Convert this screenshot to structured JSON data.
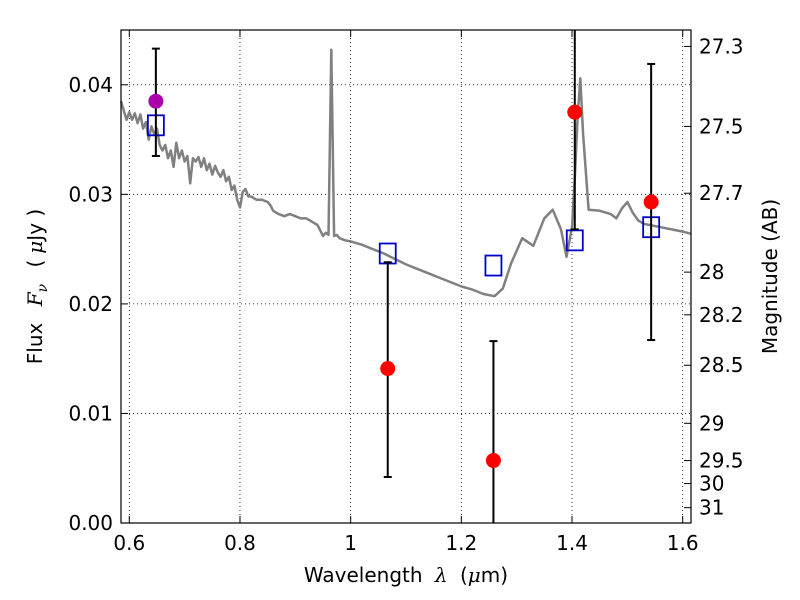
{
  "chart_data": {
    "type": "scatter",
    "xlabel": {
      "prefix": "Wavelength",
      "symbol": "λ",
      "unit_open": "(",
      "unit_mu": "μ",
      "unit_rest": "m)"
    },
    "ylabel": {
      "prefix": "Flux",
      "symbol": "F",
      "subscript": "ν",
      "unit_open": "(",
      "unit_mu": "μ",
      "unit_rest": "Jy )"
    },
    "ylabel_right": "Magnitude (AB)",
    "xlim": [
      0.585,
      1.615
    ],
    "ylim": [
      0.0,
      0.045
    ],
    "grid": true,
    "x_ticks": [
      {
        "value": 0.6,
        "label": "0.6"
      },
      {
        "value": 0.8,
        "label": "0.8"
      },
      {
        "value": 1.0,
        "label": "1"
      },
      {
        "value": 1.2,
        "label": "1.2"
      },
      {
        "value": 1.4,
        "label": "1.4"
      },
      {
        "value": 1.6,
        "label": "1.6"
      }
    ],
    "y_ticks": [
      {
        "value": 0.0,
        "label": "0.00"
      },
      {
        "value": 0.01,
        "label": "0.01"
      },
      {
        "value": 0.02,
        "label": "0.02"
      },
      {
        "value": 0.03,
        "label": "0.03"
      },
      {
        "value": 0.04,
        "label": "0.04"
      }
    ],
    "right_ticks": [
      {
        "flux": 0.0435,
        "label": "27.3"
      },
      {
        "flux": 0.0362,
        "label": "27.5"
      },
      {
        "flux": 0.0301,
        "label": "27.7"
      },
      {
        "flux": 0.0229,
        "label": "28"
      },
      {
        "flux": 0.019,
        "label": "28.2"
      },
      {
        "flux": 0.0144,
        "label": "28.5"
      },
      {
        "flux": 0.0091,
        "label": "29"
      },
      {
        "flux": 0.0057,
        "label": "29.5"
      },
      {
        "flux": 0.0036,
        "label": "30"
      },
      {
        "flux": 0.0014,
        "label": "31"
      }
    ],
    "series": [
      {
        "kind": "line",
        "color": "#808080",
        "points": [
          [
            0.585,
            0.0385
          ],
          [
            0.595,
            0.0368
          ],
          [
            0.6,
            0.0375
          ],
          [
            0.605,
            0.0368
          ],
          [
            0.61,
            0.0374
          ],
          [
            0.615,
            0.0365
          ],
          [
            0.62,
            0.0373
          ],
          [
            0.625,
            0.036
          ],
          [
            0.63,
            0.0366
          ],
          [
            0.635,
            0.035
          ],
          [
            0.64,
            0.0362
          ],
          [
            0.645,
            0.0355
          ],
          [
            0.65,
            0.036
          ],
          [
            0.655,
            0.0345
          ],
          [
            0.66,
            0.034
          ],
          [
            0.665,
            0.0345
          ],
          [
            0.67,
            0.0333
          ],
          [
            0.675,
            0.034
          ],
          [
            0.68,
            0.0325
          ],
          [
            0.685,
            0.0347
          ],
          [
            0.69,
            0.0333
          ],
          [
            0.695,
            0.034
          ],
          [
            0.7,
            0.033
          ],
          [
            0.705,
            0.0335
          ],
          [
            0.71,
            0.031
          ],
          [
            0.715,
            0.0333
          ],
          [
            0.72,
            0.033
          ],
          [
            0.725,
            0.0334
          ],
          [
            0.73,
            0.0325
          ],
          [
            0.735,
            0.0333
          ],
          [
            0.74,
            0.0322
          ],
          [
            0.745,
            0.0328
          ],
          [
            0.75,
            0.0318
          ],
          [
            0.755,
            0.0326
          ],
          [
            0.76,
            0.032
          ],
          [
            0.765,
            0.0316
          ],
          [
            0.77,
            0.0322
          ],
          [
            0.775,
            0.0312
          ],
          [
            0.78,
            0.0316
          ],
          [
            0.785,
            0.0304
          ],
          [
            0.79,
            0.0308
          ],
          [
            0.795,
            0.0295
          ],
          [
            0.8,
            0.0288
          ],
          [
            0.805,
            0.0302
          ],
          [
            0.81,
            0.0305
          ],
          [
            0.815,
            0.0298
          ],
          [
            0.82,
            0.0298
          ],
          [
            0.83,
            0.0295
          ],
          [
            0.84,
            0.0295
          ],
          [
            0.85,
            0.0293
          ],
          [
            0.855,
            0.029
          ],
          [
            0.86,
            0.0285
          ],
          [
            0.87,
            0.0282
          ],
          [
            0.88,
            0.028
          ],
          [
            0.89,
            0.0282
          ],
          [
            0.9,
            0.028
          ],
          [
            0.91,
            0.0278
          ],
          [
            0.92,
            0.0278
          ],
          [
            0.93,
            0.0275
          ],
          [
            0.94,
            0.0272
          ],
          [
            0.95,
            0.0262
          ],
          [
            0.955,
            0.0265
          ],
          [
            0.96,
            0.0263
          ],
          [
            0.965,
            0.0432
          ],
          [
            0.97,
            0.0262
          ],
          [
            0.975,
            0.0263
          ],
          [
            0.98,
            0.026
          ],
          [
            0.99,
            0.0258
          ],
          [
            1.0,
            0.0257
          ],
          [
            1.02,
            0.0254
          ],
          [
            1.04,
            0.025
          ],
          [
            1.06,
            0.0246
          ],
          [
            1.08,
            0.0241
          ],
          [
            1.1,
            0.0236
          ],
          [
            1.12,
            0.0232
          ],
          [
            1.14,
            0.0228
          ],
          [
            1.16,
            0.0224
          ],
          [
            1.18,
            0.022
          ],
          [
            1.2,
            0.0216
          ],
          [
            1.22,
            0.0213
          ],
          [
            1.24,
            0.0209
          ],
          [
            1.26,
            0.0207
          ],
          [
            1.275,
            0.0214
          ],
          [
            1.29,
            0.0237
          ],
          [
            1.31,
            0.026
          ],
          [
            1.33,
            0.0253
          ],
          [
            1.35,
            0.0278
          ],
          [
            1.365,
            0.0286
          ],
          [
            1.38,
            0.0268
          ],
          [
            1.39,
            0.0243
          ],
          [
            1.4,
            0.027
          ],
          [
            1.405,
            0.0315
          ],
          [
            1.41,
            0.037
          ],
          [
            1.415,
            0.0406
          ],
          [
            1.42,
            0.0355
          ],
          [
            1.43,
            0.0286
          ],
          [
            1.45,
            0.0285
          ],
          [
            1.47,
            0.0282
          ],
          [
            1.48,
            0.0278
          ],
          [
            1.49,
            0.0287
          ],
          [
            1.5,
            0.0293
          ],
          [
            1.51,
            0.0283
          ],
          [
            1.52,
            0.0276
          ],
          [
            1.53,
            0.0273
          ],
          [
            1.54,
            0.0272
          ],
          [
            1.56,
            0.027
          ],
          [
            1.58,
            0.0268
          ],
          [
            1.6,
            0.0266
          ],
          [
            1.615,
            0.0264
          ]
        ]
      },
      {
        "kind": "squares",
        "color": "#0000cc",
        "points": [
          [
            0.648,
            0.0363
          ],
          [
            1.067,
            0.0246
          ],
          [
            1.258,
            0.0235
          ],
          [
            1.405,
            0.0258
          ],
          [
            1.543,
            0.027
          ]
        ]
      },
      {
        "kind": "errorbar_points",
        "points": [
          {
            "x": 0.648,
            "y": 0.0385,
            "lo": 0.0335,
            "hi": 0.0433,
            "color": "#aa00aa"
          },
          {
            "x": 1.067,
            "y": 0.0141,
            "lo": 0.0042,
            "hi": 0.0238,
            "color": "#ff0000"
          },
          {
            "x": 1.258,
            "y": 0.0057,
            "lo": 0.0,
            "hi": 0.0166,
            "color": "#ff0000"
          },
          {
            "x": 1.405,
            "y": 0.0375,
            "lo": 0.0268,
            "hi": 0.0452,
            "color": "#ff0000"
          },
          {
            "x": 1.543,
            "y": 0.0293,
            "lo": 0.0167,
            "hi": 0.0419,
            "color": "#ff0000"
          }
        ]
      }
    ]
  }
}
